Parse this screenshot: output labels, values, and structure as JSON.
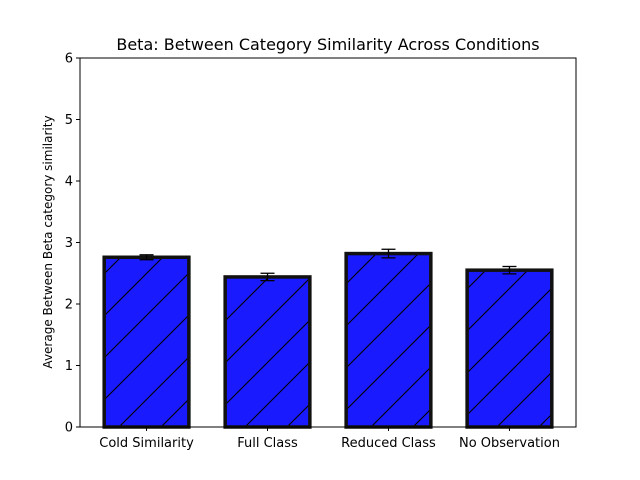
{
  "chart_data": {
    "type": "bar",
    "title": "Beta: Between Category Similarity Across Conditions",
    "xlabel": "",
    "ylabel": "Average Between Beta category similarity",
    "categories": [
      "Cold Similarity",
      "Full Class",
      "Reduced Class",
      "No Observation"
    ],
    "values": [
      2.76,
      2.44,
      2.82,
      2.55
    ],
    "errors": [
      0.04,
      0.06,
      0.07,
      0.06
    ],
    "ylim": [
      0,
      6
    ],
    "yticks": [
      "0",
      "1",
      "2",
      "3",
      "4",
      "5",
      "6"
    ],
    "grid": false,
    "bar_color": "#1a1aff",
    "edge_color": "#111111",
    "hatch": "/"
  }
}
